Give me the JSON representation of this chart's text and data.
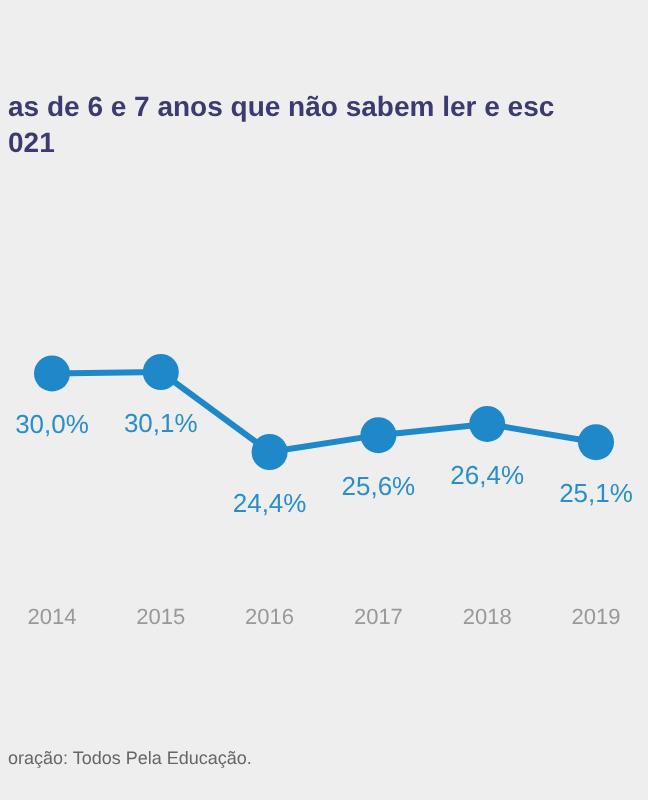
{
  "chart_data": {
    "type": "line",
    "title": "as de 6 e 7 anos que não sabem ler e esc",
    "subtitle": "021",
    "categories": [
      "2014",
      "2015",
      "2016",
      "2017",
      "2018",
      "2019"
    ],
    "series": [
      {
        "color": "#1e88c8",
        "values": [
          30.0,
          30.1,
          24.4,
          25.6,
          26.4,
          25.1
        ],
        "value_labels": [
          "30,0%",
          "30,1%",
          "24,4%",
          "25,6%",
          "26,4%",
          "25,1%"
        ]
      }
    ],
    "marker": "circle",
    "annotations": [
      "oração: Todos Pela Educação."
    ]
  }
}
